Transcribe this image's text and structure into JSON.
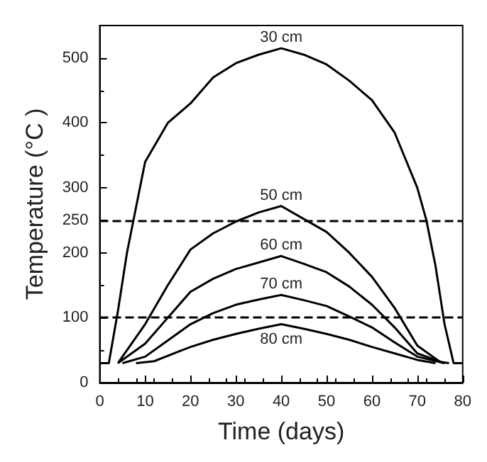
{
  "chart_data": {
    "type": "line",
    "xlabel": "Time (days)",
    "ylabel": "Temperature (°C )",
    "xlim": [
      0,
      80
    ],
    "xticks": [
      0,
      10,
      20,
      30,
      40,
      50,
      60,
      70,
      80
    ],
    "ylim": [
      0,
      550
    ],
    "yticks": [
      0,
      100,
      200,
      250,
      300,
      400,
      500
    ],
    "grid": false,
    "legend": false,
    "marker": "none",
    "line_style": "solid",
    "ref_lines": [
      {
        "axis": "y",
        "value": 250,
        "color": "#000000",
        "line_style": "dashed"
      },
      {
        "axis": "y",
        "value": 100,
        "color": "#000000",
        "line_style": "dashed"
      }
    ],
    "series": [
      {
        "name": "30 cm",
        "color": "#000000",
        "x": [
          0,
          2,
          4,
          6,
          8,
          10,
          15,
          20,
          25,
          30,
          35,
          40,
          45,
          50,
          55,
          60,
          65,
          70,
          72,
          74,
          76,
          78,
          80
        ],
        "values": [
          30,
          30,
          110,
          200,
          270,
          340,
          400,
          430,
          470,
          492,
          505,
          515,
          505,
          490,
          465,
          435,
          385,
          300,
          250,
          180,
          90,
          30,
          30
        ]
      },
      {
        "name": "50 cm",
        "color": "#000000",
        "x": [
          4,
          10,
          15,
          20,
          25,
          30,
          35,
          40,
          45,
          50,
          55,
          60,
          65,
          70,
          75,
          77
        ],
        "values": [
          30,
          90,
          150,
          205,
          230,
          248,
          262,
          272,
          252,
          232,
          200,
          163,
          115,
          57,
          32,
          30
        ]
      },
      {
        "name": "60 cm",
        "color": "#000000",
        "x": [
          4,
          10,
          15,
          20,
          25,
          30,
          35,
          40,
          45,
          50,
          55,
          60,
          65,
          70,
          76
        ],
        "values": [
          30,
          60,
          100,
          140,
          160,
          175,
          185,
          195,
          183,
          170,
          148,
          120,
          85,
          45,
          30
        ]
      },
      {
        "name": "70 cm",
        "color": "#000000",
        "x": [
          5,
          10,
          15,
          20,
          25,
          30,
          35,
          40,
          45,
          50,
          55,
          60,
          65,
          70,
          76
        ],
        "values": [
          30,
          40,
          65,
          90,
          107,
          120,
          128,
          135,
          127,
          118,
          102,
          85,
          62,
          40,
          30
        ]
      },
      {
        "name": "80 cm",
        "color": "#000000",
        "x": [
          8,
          12,
          20,
          25,
          30,
          35,
          40,
          45,
          50,
          55,
          60,
          65,
          70,
          74
        ],
        "values": [
          30,
          33,
          55,
          66,
          75,
          83,
          90,
          83,
          75,
          66,
          55,
          45,
          35,
          30
        ]
      }
    ]
  }
}
